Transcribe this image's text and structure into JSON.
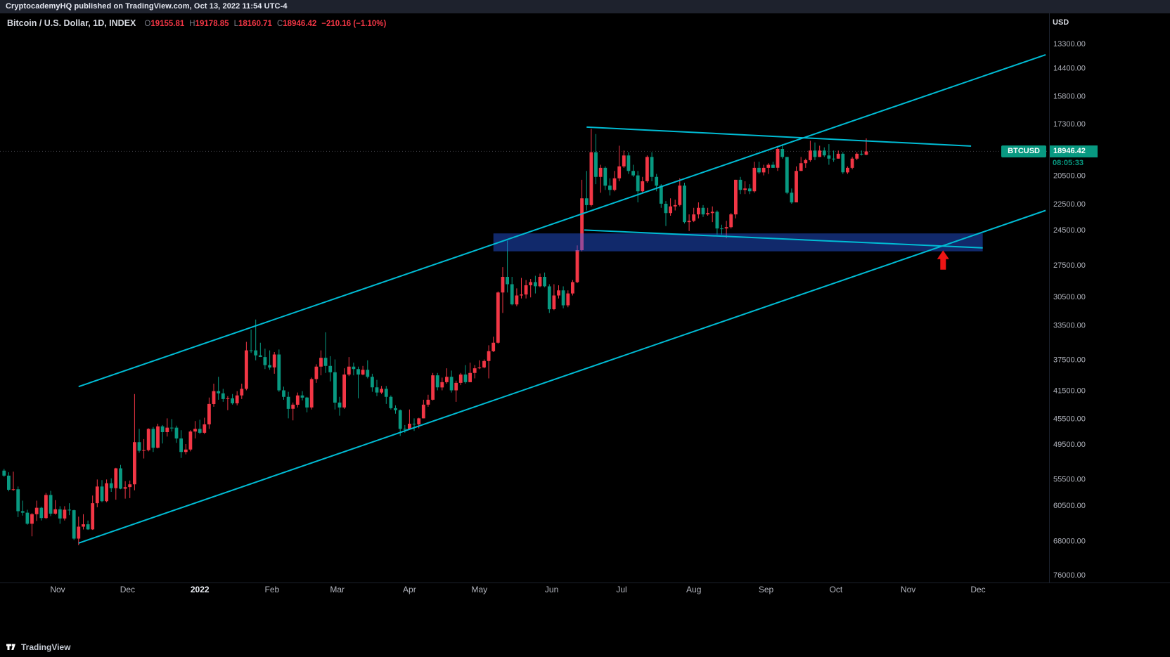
{
  "attribution_bar": {
    "text": "CryptocademyHQ published on TradingView.com, Oct 13, 2022 11:54 UTC-4"
  },
  "legend": {
    "symbol_title": "Bitcoin / U.S. Dollar, 1D, INDEX",
    "open_label": "O",
    "open_value": "19155.81",
    "high_label": "H",
    "high_value": "19178.85",
    "low_label": "L",
    "low_value": "18160.71",
    "close_label": "C",
    "close_value": "18946.42",
    "change_value": "−210.16 (−1.10%)"
  },
  "price_scale": {
    "currency": "USD",
    "last_price_label": "18946.42",
    "countdown": "08:05:33"
  },
  "symbol_badge_label": "BTCUSD",
  "footer": {
    "brand": "TradingView"
  },
  "colors": {
    "background": "#000000",
    "topbar_background": "#1e222d",
    "up": "#089981",
    "down": "#f23645",
    "trendline": "#00bcd4",
    "zone_fill": "#2962ff",
    "arrow": "#ee1515",
    "axis_text": "#b2b5be"
  },
  "chart_data": {
    "type": "candlestick",
    "title": "Bitcoin / U.S. Dollar, 1D, INDEX",
    "symbol": "BTCUSD",
    "exchange": "INDEX",
    "interval": "1D",
    "scale_note": "Price axis is inverted (lower prices at top) and logarithmic",
    "unit": "candle OHLC values in thousands of USD",
    "candles_start_date": "2021-10-09",
    "candle_interval_days": 2,
    "last_price": 18946.42,
    "last_candle_ohlc": {
      "open": 19155.81,
      "high": 19178.85,
      "low": 18160.71,
      "close": 18946.42,
      "change": -210.16,
      "change_pct": -1.1
    },
    "y_axis": {
      "ticks": [
        13300,
        14400,
        15800,
        17300,
        20500,
        22500,
        24500,
        27500,
        30500,
        33500,
        37500,
        41500,
        45500,
        49500,
        55500,
        60500,
        68000,
        76000
      ]
    },
    "x_axis": {
      "labels": [
        {
          "label": "Nov",
          "date": "2021-11-01"
        },
        {
          "label": "Dec",
          "date": "2021-12-01"
        },
        {
          "label": "2022",
          "date": "2022-01-01",
          "emphasis": true
        },
        {
          "label": "Feb",
          "date": "2022-02-01"
        },
        {
          "label": "Mar",
          "date": "2022-03-01"
        },
        {
          "label": "Apr",
          "date": "2022-04-01"
        },
        {
          "label": "May",
          "date": "2022-05-01"
        },
        {
          "label": "Jun",
          "date": "2022-06-01"
        },
        {
          "label": "Jul",
          "date": "2022-07-01"
        },
        {
          "label": "Aug",
          "date": "2022-08-01"
        },
        {
          "label": "Sep",
          "date": "2022-09-01"
        },
        {
          "label": "Oct",
          "date": "2022-10-01"
        },
        {
          "label": "Nov",
          "date": "2022-11-01"
        },
        {
          "label": "Dec",
          "date": "2022-12-01"
        }
      ]
    },
    "candles": [
      [
        54.0,
        55.1,
        53.7,
        54.9
      ],
      [
        54.9,
        57.8,
        54.3,
        57.5
      ],
      [
        57.5,
        57.7,
        54.2,
        57.4
      ],
      [
        57.4,
        62.9,
        56.9,
        61.7
      ],
      [
        61.7,
        62.6,
        59.6,
        62.0
      ],
      [
        62.0,
        64.5,
        61.4,
        64.3
      ],
      [
        64.3,
        67.0,
        62.1,
        62.3
      ],
      [
        62.3,
        63.7,
        59.6,
        61.0
      ],
      [
        61.0,
        63.6,
        60.8,
        63.1
      ],
      [
        63.1,
        63.3,
        58.1,
        58.5
      ],
      [
        58.5,
        62.7,
        57.7,
        62.2
      ],
      [
        62.2,
        62.4,
        59.5,
        61.3
      ],
      [
        61.3,
        64.3,
        60.7,
        63.2
      ],
      [
        63.2,
        63.6,
        60.7,
        61.4
      ],
      [
        61.4,
        62.5,
        60.1,
        61.5
      ],
      [
        61.5,
        67.8,
        61.4,
        67.5
      ],
      [
        67.5,
        69.0,
        62.8,
        64.9
      ],
      [
        64.9,
        65.5,
        62.3,
        64.4
      ],
      [
        64.4,
        65.6,
        63.6,
        65.5
      ],
      [
        65.5,
        65.6,
        58.6,
        60.1
      ],
      [
        60.1,
        60.9,
        55.6,
        56.9
      ],
      [
        56.9,
        59.9,
        55.7,
        59.7
      ],
      [
        59.7,
        59.9,
        55.6,
        56.3
      ],
      [
        56.3,
        57.9,
        55.4,
        57.2
      ],
      [
        57.2,
        59.4,
        53.5,
        53.6
      ],
      [
        53.6,
        57.4,
        53.0,
        57.3
      ],
      [
        57.3,
        59.2,
        55.9,
        57.0
      ],
      [
        57.0,
        59.1,
        55.8,
        56.5
      ],
      [
        56.5,
        57.6,
        42.0,
        49.2
      ],
      [
        49.2,
        50.9,
        47.1,
        50.6
      ],
      [
        50.6,
        51.9,
        48.7,
        50.5
      ],
      [
        50.5,
        50.7,
        47.0,
        47.1
      ],
      [
        47.1,
        50.8,
        46.8,
        50.1
      ],
      [
        50.1,
        50.2,
        46.3,
        46.7
      ],
      [
        46.7,
        49.4,
        46.5,
        47.6
      ],
      [
        47.6,
        48.3,
        45.5,
        46.9
      ],
      [
        46.9,
        47.5,
        45.6,
        46.9
      ],
      [
        46.9,
        49.3,
        46.6,
        48.6
      ],
      [
        48.6,
        51.8,
        47.3,
        50.8
      ],
      [
        50.8,
        51.2,
        49.5,
        50.4
      ],
      [
        50.4,
        50.7,
        47.3,
        47.5
      ],
      [
        47.5,
        48.6,
        45.9,
        47.1
      ],
      [
        47.1,
        47.9,
        45.7,
        47.7
      ],
      [
        47.7,
        47.9,
        45.4,
        46.4
      ],
      [
        46.4,
        47.1,
        42.5,
        43.4
      ],
      [
        43.4,
        43.8,
        40.6,
        41.6
      ],
      [
        41.6,
        42.8,
        39.7,
        41.9
      ],
      [
        41.9,
        43.1,
        41.3,
        42.7
      ],
      [
        42.7,
        44.3,
        42.3,
        42.6
      ],
      [
        42.6,
        43.5,
        42.0,
        43.3
      ],
      [
        43.3,
        43.6,
        41.6,
        42.2
      ],
      [
        42.2,
        42.7,
        40.6,
        41.3
      ],
      [
        41.3,
        41.5,
        35.4,
        36.4
      ],
      [
        36.4,
        36.7,
        34.0,
        36.4
      ],
      [
        36.4,
        37.6,
        32.9,
        37.0
      ],
      [
        37.0,
        37.2,
        35.5,
        37.2
      ],
      [
        37.2,
        38.7,
        36.2,
        38.2
      ],
      [
        38.2,
        38.8,
        36.4,
        38.5
      ],
      [
        38.5,
        39.3,
        36.6,
        36.9
      ],
      [
        36.9,
        41.7,
        36.3,
        41.5
      ],
      [
        41.5,
        42.8,
        41.0,
        42.4
      ],
      [
        42.4,
        45.5,
        41.7,
        44.1
      ],
      [
        44.1,
        45.8,
        43.2,
        43.5
      ],
      [
        43.5,
        43.9,
        41.8,
        42.2
      ],
      [
        42.2,
        42.9,
        41.6,
        42.5
      ],
      [
        42.5,
        44.6,
        42.4,
        43.9
      ],
      [
        43.9,
        44.2,
        39.8,
        40.0
      ],
      [
        40.0,
        40.5,
        38.1,
        38.4
      ],
      [
        38.4,
        39.5,
        36.4,
        37.3
      ],
      [
        37.3,
        39.2,
        34.3,
        38.3
      ],
      [
        38.3,
        40.3,
        37.1,
        39.1
      ],
      [
        39.1,
        44.2,
        37.5,
        43.2
      ],
      [
        43.2,
        45.1,
        42.4,
        43.9
      ],
      [
        43.9,
        44.1,
        38.6,
        39.4
      ],
      [
        39.4,
        39.6,
        37.2,
        38.4
      ],
      [
        38.4,
        39.5,
        37.9,
        38.7
      ],
      [
        38.7,
        42.6,
        38.4,
        39.4
      ],
      [
        39.4,
        39.5,
        38.3,
        38.8
      ],
      [
        38.8,
        39.9,
        37.6,
        39.7
      ],
      [
        39.7,
        41.7,
        39.3,
        41.1
      ],
      [
        41.1,
        42.3,
        40.1,
        41.8
      ],
      [
        41.8,
        42.0,
        40.9,
        41.3
      ],
      [
        41.3,
        43.4,
        40.9,
        42.4
      ],
      [
        42.4,
        44.2,
        42.2,
        44.0
      ],
      [
        44.0,
        44.8,
        43.6,
        44.3
      ],
      [
        44.3,
        48.2,
        44.2,
        47.1
      ],
      [
        47.1,
        47.7,
        46.5,
        47.1
      ],
      [
        47.1,
        47.2,
        44.2,
        46.3
      ],
      [
        46.3,
        47.4,
        45.5,
        46.4
      ],
      [
        46.4,
        47.0,
        45.4,
        45.5
      ],
      [
        45.5,
        45.5,
        42.8,
        43.5
      ],
      [
        43.5,
        43.8,
        42.1,
        42.8
      ],
      [
        42.8,
        42.9,
        39.2,
        39.5
      ],
      [
        39.5,
        41.5,
        39.2,
        41.1
      ],
      [
        41.1,
        41.5,
        39.8,
        40.4
      ],
      [
        40.4,
        40.6,
        38.6,
        39.7
      ],
      [
        39.7,
        41.8,
        38.9,
        41.5
      ],
      [
        41.5,
        43.1,
        40.2,
        40.5
      ],
      [
        40.5,
        40.8,
        39.2,
        39.4
      ],
      [
        39.4,
        40.6,
        38.2,
        40.4
      ],
      [
        40.4,
        40.4,
        37.9,
        39.2
      ],
      [
        39.2,
        39.9,
        38.2,
        38.6
      ],
      [
        38.6,
        38.7,
        37.6,
        38.5
      ],
      [
        38.5,
        38.6,
        37.5,
        37.7
      ],
      [
        37.7,
        39.9,
        35.8,
        36.5
      ],
      [
        36.5,
        36.6,
        34.8,
        35.5
      ],
      [
        35.5,
        35.6,
        30.0,
        30.1
      ],
      [
        30.1,
        32.2,
        27.7,
        28.6
      ],
      [
        28.6,
        30.1,
        25.4,
        29.3
      ],
      [
        29.3,
        31.4,
        28.6,
        31.3
      ],
      [
        31.3,
        31.5,
        29.7,
        30.4
      ],
      [
        30.4,
        30.7,
        28.7,
        30.3
      ],
      [
        30.3,
        30.7,
        28.9,
        29.4
      ],
      [
        29.4,
        30.6,
        28.8,
        29.1
      ],
      [
        29.1,
        30.2,
        28.5,
        29.5
      ],
      [
        29.5,
        29.6,
        28.3,
        28.6
      ],
      [
        28.6,
        29.6,
        28.2,
        29.5
      ],
      [
        29.5,
        32.2,
        29.3,
        31.8
      ],
      [
        31.8,
        31.9,
        29.3,
        30.4
      ],
      [
        30.4,
        30.7,
        29.4,
        29.9
      ],
      [
        29.9,
        31.7,
        29.5,
        31.4
      ],
      [
        31.4,
        31.6,
        29.9,
        30.2
      ],
      [
        30.2,
        30.4,
        28.9,
        29.1
      ],
      [
        29.1,
        29.2,
        25.8,
        26.2
      ],
      [
        26.2,
        26.3,
        20.8,
        22.1
      ],
      [
        22.1,
        23.0,
        20.2,
        22.6
      ],
      [
        22.6,
        22.7,
        17.6,
        19.0
      ],
      [
        19.0,
        21.1,
        17.9,
        20.6
      ],
      [
        20.6,
        21.7,
        19.8,
        20.0
      ],
      [
        20.0,
        21.5,
        19.9,
        21.2
      ],
      [
        21.2,
        21.9,
        20.7,
        21.5
      ],
      [
        21.5,
        21.6,
        20.2,
        20.7
      ],
      [
        20.7,
        20.9,
        18.6,
        19.9
      ],
      [
        19.9,
        20.0,
        18.9,
        19.2
      ],
      [
        19.2,
        20.4,
        19.0,
        20.2
      ],
      [
        20.2,
        20.6,
        19.8,
        20.5
      ],
      [
        20.5,
        22.4,
        20.2,
        21.6
      ],
      [
        21.6,
        21.7,
        20.6,
        20.9
      ],
      [
        20.9,
        21.0,
        19.2,
        19.3
      ],
      [
        19.3,
        20.9,
        19.0,
        20.6
      ],
      [
        20.6,
        21.6,
        20.4,
        21.2
      ],
      [
        21.2,
        22.8,
        21.1,
        22.5
      ],
      [
        22.5,
        24.2,
        22.3,
        23.2
      ],
      [
        23.2,
        23.4,
        22.1,
        22.7
      ],
      [
        22.7,
        23.0,
        22.2,
        22.6
      ],
      [
        22.6,
        22.7,
        20.7,
        21.2
      ],
      [
        21.2,
        24.0,
        21.0,
        23.9
      ],
      [
        23.9,
        24.6,
        23.3,
        23.8
      ],
      [
        23.8,
        23.9,
        22.8,
        23.3
      ],
      [
        23.3,
        23.6,
        22.4,
        22.8
      ],
      [
        22.8,
        23.5,
        22.6,
        23.3
      ],
      [
        23.3,
        23.4,
        22.8,
        23.2
      ],
      [
        23.2,
        23.9,
        22.7,
        23.1
      ],
      [
        23.1,
        24.9,
        23.0,
        24.4
      ],
      [
        24.4,
        24.9,
        24.1,
        24.4
      ],
      [
        24.4,
        25.2,
        23.8,
        24.3
      ],
      [
        24.3,
        24.4,
        23.2,
        23.3
      ],
      [
        23.3,
        23.6,
        20.8,
        20.8
      ],
      [
        20.8,
        21.8,
        20.6,
        21.5
      ],
      [
        21.5,
        21.8,
        20.9,
        21.4
      ],
      [
        21.4,
        21.8,
        21.1,
        21.6
      ],
      [
        21.6,
        21.7,
        19.6,
        20.0
      ],
      [
        20.0,
        20.4,
        19.6,
        20.3
      ],
      [
        20.3,
        20.5,
        19.8,
        20.0
      ],
      [
        20.0,
        20.4,
        19.7,
        19.8
      ],
      [
        19.8,
        20.0,
        19.6,
        20.0
      ],
      [
        20.0,
        20.2,
        18.7,
        18.8
      ],
      [
        18.8,
        19.4,
        18.5,
        19.3
      ],
      [
        19.3,
        21.8,
        19.3,
        21.7
      ],
      [
        21.7,
        22.5,
        21.4,
        22.4
      ],
      [
        22.4,
        22.4,
        19.9,
        20.2
      ],
      [
        20.2,
        20.2,
        19.3,
        19.7
      ],
      [
        19.7,
        20.0,
        19.4,
        19.5
      ],
      [
        19.5,
        19.6,
        18.3,
        18.9
      ],
      [
        18.9,
        19.5,
        18.4,
        19.3
      ],
      [
        19.3,
        19.3,
        18.6,
        18.9
      ],
      [
        18.9,
        19.3,
        18.7,
        19.2
      ],
      [
        19.2,
        19.8,
        18.5,
        19.4
      ],
      [
        19.4,
        19.6,
        18.9,
        19.4
      ],
      [
        19.4,
        19.4,
        18.9,
        19.1
      ],
      [
        19.1,
        20.4,
        19.0,
        20.3
      ],
      [
        20.3,
        20.4,
        19.9,
        20.0
      ],
      [
        20.0,
        20.1,
        19.3,
        19.4
      ],
      [
        19.4,
        19.5,
        19.0,
        19.1
      ],
      [
        19.1,
        19.2,
        18.9,
        19.1
      ],
      [
        19.16,
        19.18,
        18.16,
        18.95
      ]
    ],
    "drawings": {
      "trendlines": [
        {
          "name": "rising-channel-top",
          "from": {
            "date": "2021-11-10",
            "price": 41000
          },
          "to": {
            "date": "2022-12-30",
            "price": 13800
          }
        },
        {
          "name": "rising-channel-bottom",
          "from": {
            "date": "2021-11-10",
            "price": 68500
          },
          "to": {
            "date": "2022-12-30",
            "price": 23000
          }
        },
        {
          "name": "lows-resistance",
          "from": {
            "date": "2022-06-16",
            "price": 17500
          },
          "to": {
            "date": "2022-11-28",
            "price": 18620
          }
        },
        {
          "name": "zone-resistance",
          "from": {
            "date": "2022-06-15",
            "price": 24530
          },
          "to": {
            "date": "2022-12-03",
            "price": 26000
          }
        }
      ],
      "support_zone": {
        "from": {
          "date": "2022-05-07",
          "price": 24800
        },
        "to": {
          "date": "2022-12-03",
          "price": 26300
        },
        "color": "#2962ff",
        "opacity": 0.42
      },
      "arrow": {
        "date": "2022-11-16",
        "price": 26100,
        "direction": "up",
        "color": "#ee1515"
      }
    }
  }
}
